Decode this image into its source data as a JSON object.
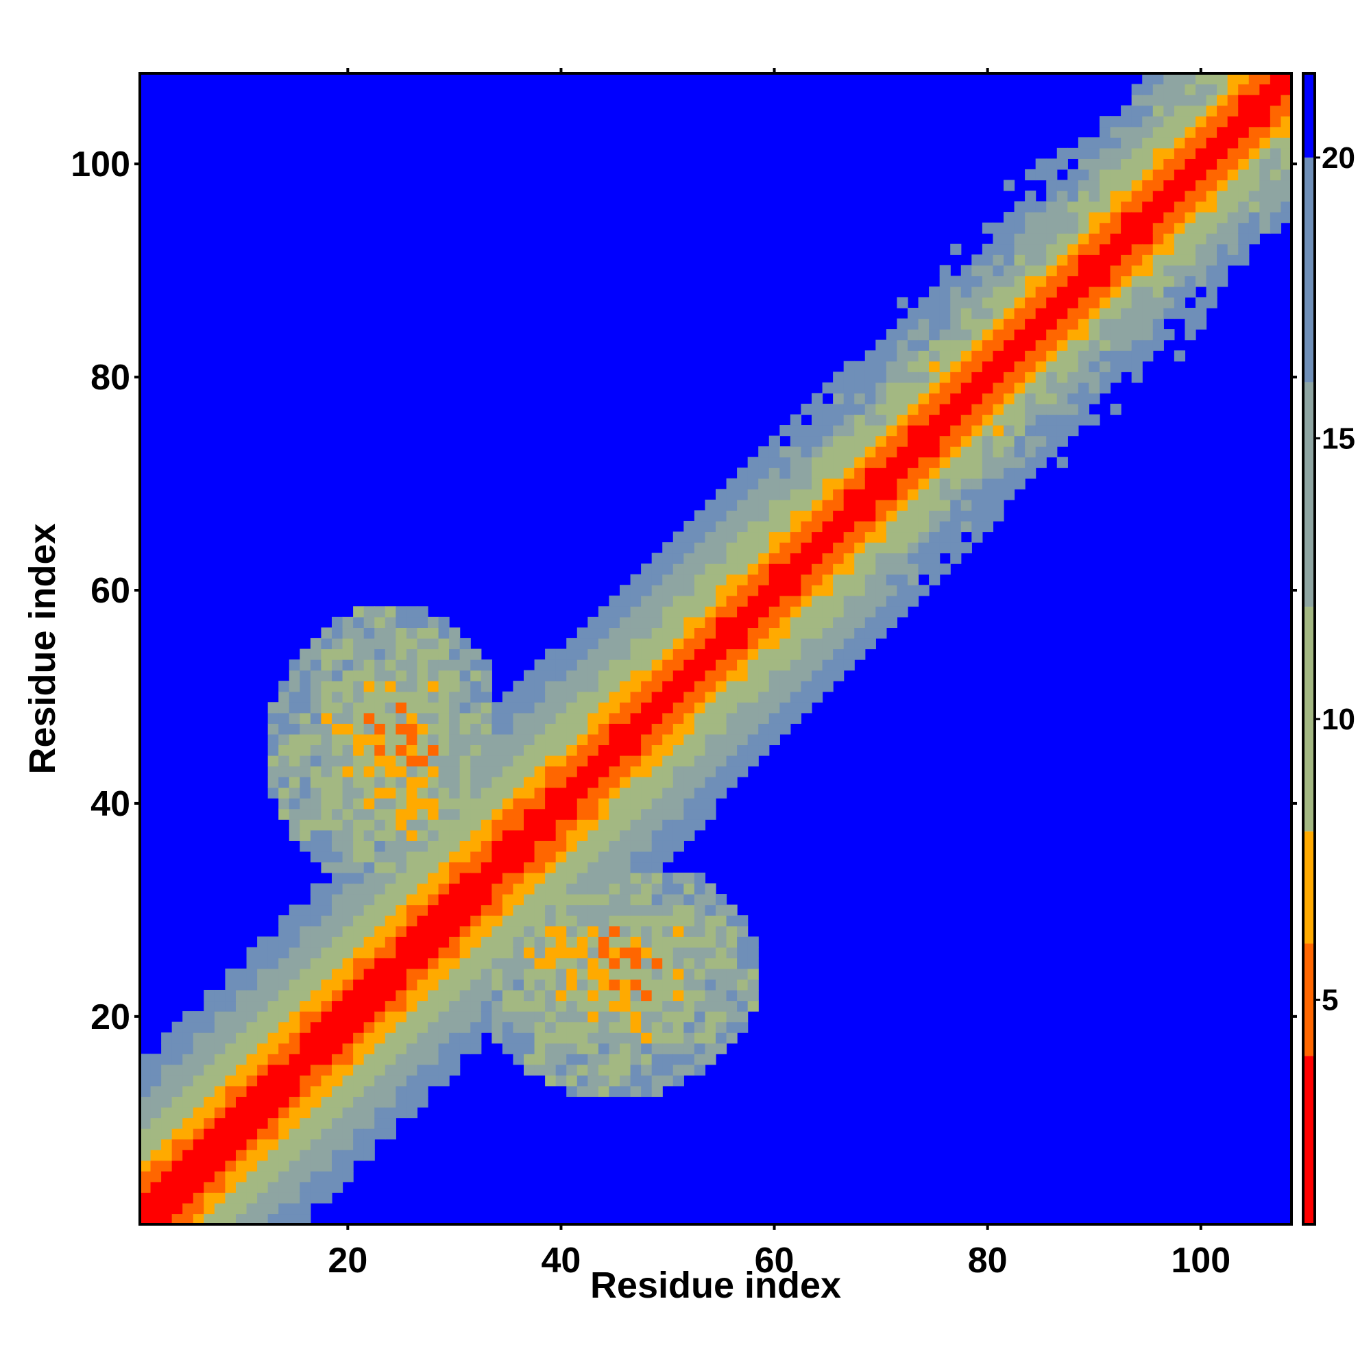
{
  "chart_data": {
    "type": "heatmap",
    "title": "",
    "xlabel": "Residue index",
    "ylabel": "Residue index",
    "n_residues": 108,
    "x_range": [
      1,
      108
    ],
    "y_range": [
      1,
      108
    ],
    "x_ticks": [
      20,
      40,
      60,
      80,
      100
    ],
    "y_ticks": [
      20,
      40,
      60,
      80,
      100
    ],
    "x_tick_labels": [
      "20",
      "40",
      "60",
      "80",
      "100"
    ],
    "y_tick_labels": [
      "20",
      "40",
      "60",
      "80",
      "100"
    ],
    "grid": false,
    "colorbar": {
      "placement": "right",
      "range": [
        1,
        21.5
      ],
      "ticks": [
        5,
        10,
        15,
        20
      ],
      "tick_labels": [
        "5",
        "10",
        "15",
        "20"
      ],
      "bands": [
        {
          "max": 4,
          "color": "#ff0000"
        },
        {
          "max": 6,
          "color": "#ff6600"
        },
        {
          "max": 8,
          "color": "#ffaa00"
        },
        {
          "max": 12,
          "color": "#a3b882"
        },
        {
          "max": 16,
          "color": "#8ea5a2"
        },
        {
          "max": 20,
          "color": "#6f8fb8"
        },
        {
          "max": 21.5,
          "color": "#0000ff"
        }
      ]
    },
    "background_color": "#0000ff",
    "features": {
      "diagonal_band": {
        "span": [
          1,
          108
        ],
        "note": "distance grows with |i-j|; red near diagonal"
      },
      "off_diagonal_contact_region": {
        "rows": [
          13,
          58
        ],
        "cols": [
          13,
          58
        ],
        "note": "contacts between residues ~13-33 and ~34-58"
      }
    }
  }
}
